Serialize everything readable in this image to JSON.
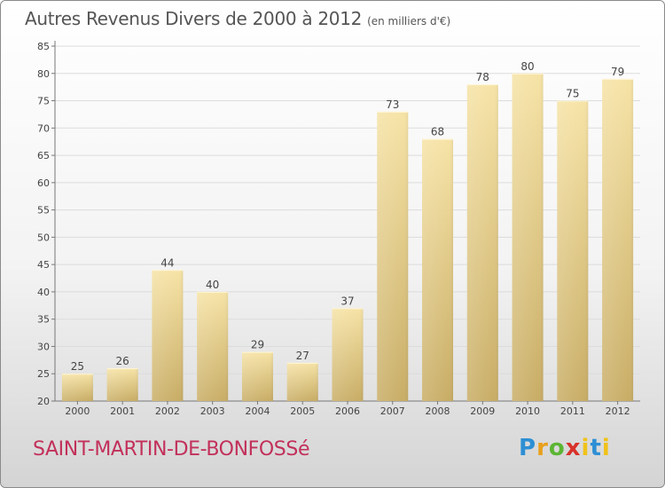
{
  "header": {
    "title": "Autres Revenus Divers de 2000 à 2012",
    "unit": "(en milliers d'€)"
  },
  "footer": {
    "commune": "SAINT-MARTIN-DE-BONFOSSé",
    "logo_letters": [
      "P",
      "r",
      "o",
      "x",
      "i",
      "t",
      "i"
    ]
  },
  "colors": {
    "bar_light": "#f6e3a6",
    "bar_dark": "#c8ad66",
    "commune_text": "#c2305a",
    "grid": "#dddddd"
  },
  "chart_data": {
    "type": "bar",
    "title": "Autres Revenus Divers de 2000 à 2012",
    "subtitle": "(en milliers d'€)",
    "categories": [
      "2000",
      "2001",
      "2002",
      "2003",
      "2004",
      "2005",
      "2006",
      "2007",
      "2008",
      "2009",
      "2010",
      "2011",
      "2012"
    ],
    "values": [
      25,
      26,
      44,
      40,
      29,
      27,
      37,
      73,
      68,
      78,
      80,
      75,
      79
    ],
    "ylim": [
      20,
      85
    ],
    "yticks": [
      20,
      25,
      30,
      35,
      40,
      45,
      50,
      55,
      60,
      65,
      70,
      75,
      80,
      85
    ],
    "grid": true,
    "data_labels": true
  }
}
